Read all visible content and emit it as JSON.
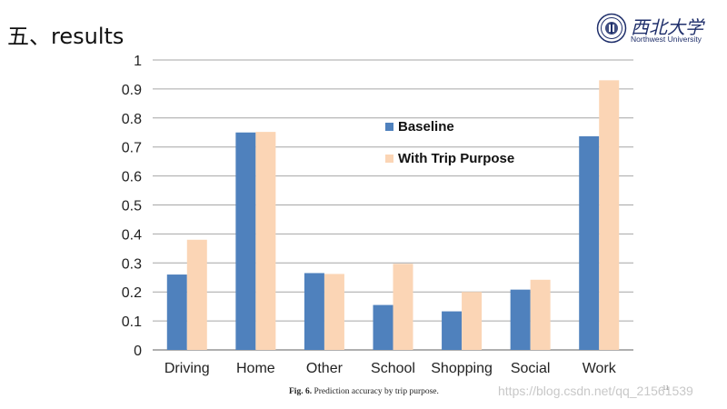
{
  "slide": {
    "title": "五、results",
    "page_number": "11",
    "watermark": "https://blog.csdn.net/qq_21561539"
  },
  "logo": {
    "name_cn": "西北大学",
    "name_en": "Northwest University",
    "color": "#1f2f6b"
  },
  "caption": {
    "label": "Fig. 6.",
    "text": "Prediction accuracy by trip purpose."
  },
  "chart_data": {
    "type": "bar",
    "categories": [
      "Driving",
      "Home",
      "Other",
      "School",
      "Shopping",
      "Social",
      "Work"
    ],
    "series": [
      {
        "name": "Baseline",
        "color": "#4f81bd",
        "values": [
          0.26,
          0.75,
          0.265,
          0.155,
          0.133,
          0.208,
          0.737
        ]
      },
      {
        "name": "With Trip Purpose",
        "color": "#fbd5b5",
        "values": [
          0.38,
          0.752,
          0.262,
          0.297,
          0.2,
          0.242,
          0.93
        ]
      }
    ],
    "yticks": [
      "0",
      "0.1",
      "0.2",
      "0.3",
      "0.4",
      "0.5",
      "0.6",
      "0.7",
      "0.8",
      "0.9",
      "1"
    ],
    "ylim": [
      0,
      1
    ],
    "grid": true,
    "legend_position": "inside-center"
  }
}
